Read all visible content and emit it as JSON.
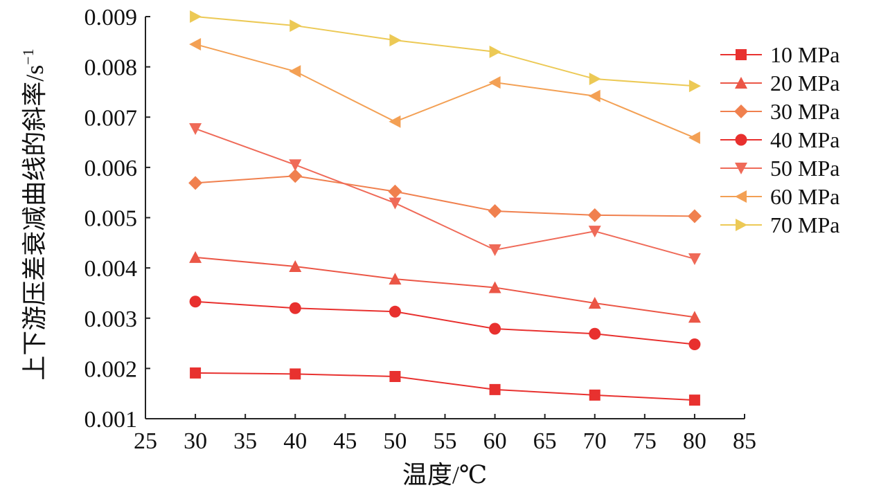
{
  "chart_data": {
    "type": "line",
    "title": "",
    "xlabel": "温度/℃",
    "ylabel": "上下游压差衰减曲线的斜率/s",
    "ylabel_superscript": "−1",
    "xlim": [
      25,
      85
    ],
    "ylim": [
      0.001,
      0.009
    ],
    "xticks": [
      "25",
      "30",
      "35",
      "40",
      "45",
      "50",
      "55",
      "60",
      "65",
      "70",
      "75",
      "80",
      "85"
    ],
    "yticks": [
      "0.001",
      "0.002",
      "0.003",
      "0.004",
      "0.005",
      "0.006",
      "0.007",
      "0.008",
      "0.009"
    ],
    "grid": false,
    "legend_position": "right",
    "x": [
      30,
      40,
      50,
      60,
      70,
      80
    ],
    "series": [
      {
        "name": "10 MPa",
        "marker": "square",
        "color": "#e8312f",
        "values": [
          0.00191,
          0.00189,
          0.00184,
          0.00158,
          0.00147,
          0.00137
        ]
      },
      {
        "name": "20 MPa",
        "marker": "triangle-up",
        "color": "#eb5646",
        "values": [
          0.00421,
          0.00403,
          0.00378,
          0.00361,
          0.0033,
          0.00302
        ]
      },
      {
        "name": "30 MPa",
        "marker": "diamond",
        "color": "#f0804e",
        "values": [
          0.00569,
          0.00583,
          0.00552,
          0.00513,
          0.00505,
          0.00503
        ]
      },
      {
        "name": "40 MPa",
        "marker": "circle",
        "color": "#e8302e",
        "values": [
          0.00333,
          0.0032,
          0.00313,
          0.00279,
          0.00269,
          0.00248
        ]
      },
      {
        "name": "50 MPa",
        "marker": "triangle-down",
        "color": "#ef6a58",
        "values": [
          0.00677,
          0.00605,
          0.00529,
          0.00436,
          0.00473,
          0.00418
        ]
      },
      {
        "name": "60 MPa",
        "marker": "triangle-left",
        "color": "#f3a054",
        "values": [
          0.00845,
          0.00791,
          0.00691,
          0.00769,
          0.00742,
          0.00659
        ]
      },
      {
        "name": "70 MPa",
        "marker": "triangle-right",
        "color": "#ecc955",
        "values": [
          0.009,
          0.00882,
          0.00853,
          0.0083,
          0.00776,
          0.00762
        ]
      }
    ]
  }
}
